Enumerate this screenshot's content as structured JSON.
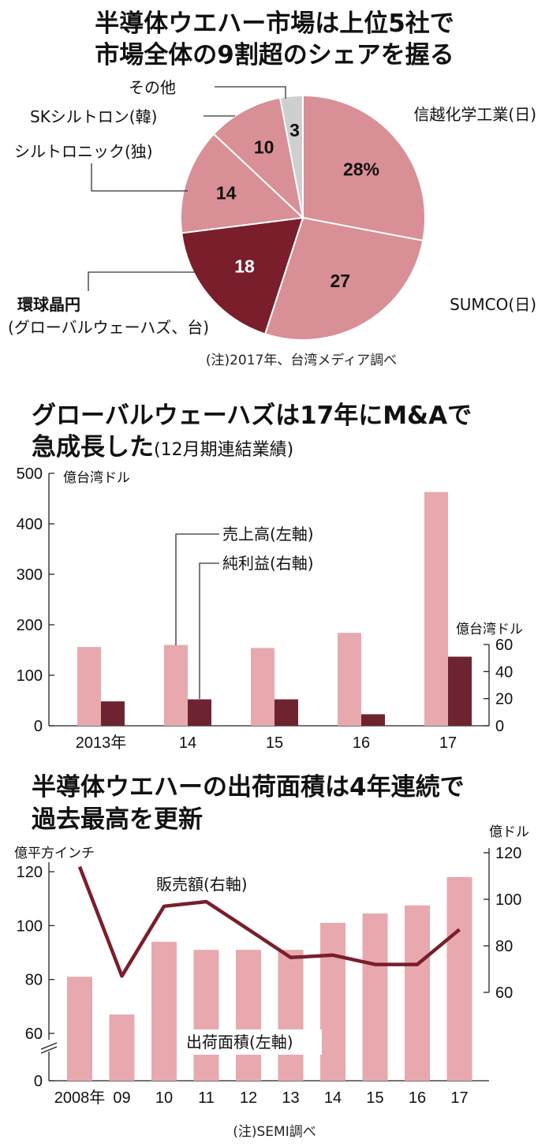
{
  "colors": {
    "pink": "#d3848c",
    "pink_light": "#e7a9ae",
    "pink_pie": "#d98f96",
    "maroon": "#7a1e2c",
    "maroon_bar": "#6e2430",
    "gray": "#cfcfcf"
  },
  "pie_panel": {
    "title_line1": "半導体ウエハー市場は上位5社で",
    "title_line2": "市場全体の9割超のシェアを握る",
    "note": "(注)2017年、台湾メディア調べ"
  },
  "bar_panel": {
    "title_line1": "グローバルウェーハズは17年にM&Aで",
    "title_line2_bold": "急成長した",
    "title_line2_sub": "(12月期連結業績)",
    "left_unit": "億台湾ドル",
    "right_unit": "億台湾ドル"
  },
  "combo_panel": {
    "title_line1": "半導体ウエハーの出荷面積は4年連続で",
    "title_line2": "過去最高を更新",
    "left_unit": "億平方インチ",
    "right_unit": "億ドル",
    "note": "(注)SEMI調べ"
  },
  "chart_data": [
    {
      "type": "pie",
      "title": "半導体ウエハー市場は上位5社で市場全体の9割超のシェアを握る",
      "slices": [
        {
          "label": "信越化学工業(日)",
          "value": 28,
          "value_label": "28%"
        },
        {
          "label": "SUMCO(日)",
          "value": 27,
          "value_label": "27"
        },
        {
          "label_line1": "環球晶円",
          "label_line2": "(グローバルウェーハズ、台)",
          "value": 18,
          "value_label": "18"
        },
        {
          "label": "シルトロニック(独)",
          "value": 14,
          "value_label": "14"
        },
        {
          "label": "SKシルトロン(韓)",
          "value": 10,
          "value_label": "10"
        },
        {
          "label": "その他",
          "value": 3,
          "value_label": "3"
        }
      ]
    },
    {
      "type": "bar",
      "title": "グローバルウェーハズは17年にM&Aで急成長した(12月期連結業績)",
      "categories": [
        "2013年",
        "14",
        "15",
        "16",
        "17"
      ],
      "series": [
        {
          "name": "売上高(左軸)",
          "axis": "left",
          "values": [
            156,
            160,
            154,
            184,
            463
          ]
        },
        {
          "name": "純利益(右軸)",
          "axis": "right",
          "values": [
            18,
            19.5,
            19.5,
            8.5,
            51
          ]
        }
      ],
      "ylim_left": [
        0,
        500
      ],
      "yticks_left": [
        "0",
        "100",
        "200",
        "300",
        "400",
        "500"
      ],
      "ylim_right": [
        0,
        60
      ],
      "yticks_right": [
        "0",
        "20",
        "40",
        "60"
      ]
    },
    {
      "type": "bar",
      "title": "半導体ウエハーの出荷面積は4年連続で過去最高を更新",
      "categories": [
        "2008年",
        "09",
        "10",
        "11",
        "12",
        "13",
        "14",
        "15",
        "16",
        "17"
      ],
      "series": [
        {
          "name": "出荷面積(左軸)",
          "axis": "left",
          "kind": "bar",
          "values": [
            81,
            67,
            94,
            91,
            91,
            91,
            101,
            104.5,
            107.5,
            118
          ]
        },
        {
          "name": "販売額(右軸)",
          "axis": "right",
          "kind": "line",
          "values": [
            114,
            67,
            97,
            99,
            87,
            75,
            76,
            72,
            72,
            87
          ]
        }
      ],
      "ylim_left": [
        50,
        120
      ],
      "yticks_left": [
        "0",
        "60",
        "80",
        "100",
        "120"
      ],
      "ylim_right": [
        60,
        120
      ],
      "yticks_right": [
        "60",
        "80",
        "100",
        "120"
      ],
      "axis_break": true
    }
  ]
}
